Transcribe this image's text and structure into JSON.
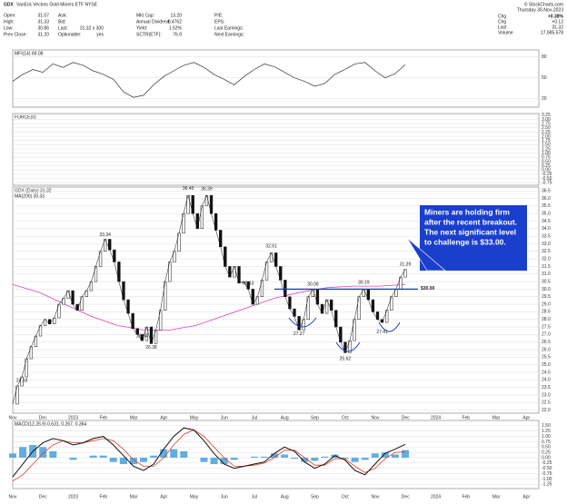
{
  "header": {
    "symbol": "GDX",
    "name": "VanEck Vectors Gold Miners ETF NYSE",
    "columns": [
      [
        [
          "Open:",
          "31.07"
        ],
        [
          "High:",
          "31.33"
        ],
        [
          "Low:",
          "30.86"
        ],
        [
          "Prev Close:",
          "31.20"
        ]
      ],
      [
        [
          "Ask:",
          ""
        ],
        [
          "Bid:",
          ""
        ],
        [
          "Last:",
          "31.32 x 300"
        ],
        [
          "Optionable:",
          "yes"
        ]
      ],
      [
        [
          "Mkt Cap:",
          "13.20"
        ],
        [
          "Annual Dividend:",
          "0.4762"
        ],
        [
          "Yield:",
          "1.52%"
        ],
        [
          "SCTR(ETF):",
          "76.9"
        ]
      ],
      [
        [
          "P/E:",
          ""
        ],
        [
          "EPS:",
          ""
        ],
        [
          "Last Earnings:",
          ""
        ],
        [
          "Next Earnings:",
          ""
        ]
      ]
    ],
    "date": "Thursday 30-Nov-2023",
    "stats": [
      [
        "Chg",
        "+0.38%"
      ],
      [
        "Chg",
        "+0.12"
      ],
      [
        "Last",
        "31.32"
      ],
      [
        "Volume",
        "17,985,578"
      ]
    ],
    "credit": "© StockCharts.com"
  },
  "months": [
    "Nov",
    "Dec",
    "2023",
    "Feb",
    "Mar",
    "Apr",
    "May",
    "Jun",
    "Jul",
    "Aug",
    "Sep",
    "Oct",
    "Nov",
    "Dec",
    "2024",
    "Feb",
    "Mar",
    "Apr"
  ],
  "chart_data": [
    {
      "type": "line",
      "title": "MFI(14) 69.08",
      "color": "#333",
      "ylim": [
        8,
        90
      ],
      "yticks": [
        80,
        50,
        20
      ],
      "values": [
        45,
        55,
        62,
        58,
        70,
        65,
        72,
        68,
        60,
        55,
        48,
        30,
        22,
        25,
        40,
        52,
        60,
        68,
        72,
        65,
        55,
        48,
        40,
        52,
        62,
        70,
        66,
        58,
        50,
        45,
        38,
        42,
        55,
        62,
        70,
        72,
        60,
        50,
        56,
        69
      ]
    },
    {
      "type": "line",
      "title": "FORCE(0)",
      "color": "#333",
      "ylim": [
        -0.9,
        3.35
      ],
      "yticks": [
        {
          "value": 3.25,
          "label": "3.25"
        },
        {
          "value": 3,
          "label": "3.00"
        },
        {
          "value": 2.75,
          "label": "2.75"
        },
        {
          "value": 2.5,
          "label": "2.50"
        },
        {
          "value": 2.25,
          "label": "2.25"
        },
        {
          "value": 2,
          "label": "2.00"
        },
        {
          "value": 1.75,
          "label": "1.75"
        },
        {
          "value": 1.5,
          "label": "1.50"
        },
        {
          "value": 1.25,
          "label": "1.25"
        },
        {
          "value": 1,
          "label": "1.00"
        },
        {
          "value": 0.75,
          "label": "0.75"
        },
        {
          "value": 0.5,
          "label": "0.50"
        },
        {
          "value": 0.25,
          "label": "0.25"
        },
        {
          "value": 0,
          "label": "0.00"
        },
        {
          "value": -0.25,
          "label": "-0.25"
        },
        {
          "value": -0.5,
          "label": "-0.50"
        },
        {
          "value": -0.75,
          "label": "-0.75"
        }
      ],
      "values": []
    },
    {
      "type": "price",
      "title": "GDX (Daily) 31.32",
      "ma_title": "MA(200) 30.33",
      "color": "#111",
      "ma_color": "#e040c0",
      "ylim": [
        21.8,
        36.75
      ],
      "yticks": [
        {
          "value": 36.5,
          "label": "36.5"
        },
        {
          "value": 36,
          "label": "36.0"
        },
        {
          "value": 35.5,
          "label": "35.5"
        },
        {
          "value": 35,
          "label": "35.0"
        },
        {
          "value": 34.5,
          "label": "34.5"
        },
        {
          "value": 34,
          "label": "34.0"
        },
        {
          "value": 33.5,
          "label": "33.5"
        },
        {
          "value": 33,
          "label": "33.0"
        },
        {
          "value": 32.5,
          "label": "32.5"
        },
        {
          "value": 32,
          "label": "32.0"
        },
        {
          "value": 31.5,
          "label": "31.5"
        },
        {
          "value": 31,
          "label": "31.0"
        },
        {
          "value": 30.5,
          "label": "30.5"
        },
        {
          "value": 30,
          "label": "30.0"
        },
        {
          "value": 29.5,
          "label": "29.5"
        },
        {
          "value": 29,
          "label": "29.0"
        },
        {
          "value": 28.5,
          "label": "28.5"
        },
        {
          "value": 28,
          "label": "28.0"
        },
        {
          "value": 27.5,
          "label": "27.5"
        },
        {
          "value": 27,
          "label": "27.0"
        },
        {
          "value": 26.5,
          "label": "26.5"
        },
        {
          "value": 26,
          "label": "26.0"
        },
        {
          "value": 25.5,
          "label": "25.5"
        },
        {
          "value": 25,
          "label": "25.0"
        },
        {
          "value": 24.5,
          "label": "24.5"
        },
        {
          "value": 24,
          "label": "24.0"
        },
        {
          "value": 23.5,
          "label": "23.5"
        },
        {
          "value": 23,
          "label": "23.0"
        },
        {
          "value": 22.5,
          "label": "22.5"
        },
        {
          "value": 22,
          "label": "22.0"
        }
      ],
      "values": [
        22.4,
        23.6,
        24.2,
        25.4,
        26.2,
        26.9,
        27.6,
        28.0,
        27.7,
        28.1,
        29.0,
        29.4,
        29.9,
        29.0,
        28.6,
        29.5,
        29.9,
        30.5,
        31.5,
        32.5,
        33.3,
        32.6,
        31.8,
        30.5,
        29.3,
        28.4,
        27.4,
        27.0,
        26.6,
        27.5,
        26.4,
        27.3,
        28.6,
        30.5,
        31.8,
        32.5,
        33.7,
        35.0,
        36.2,
        35.0,
        34.0,
        35.5,
        36.2,
        35.0,
        33.9,
        32.8,
        31.5,
        30.8,
        31.5,
        30.4,
        30.5,
        30.0,
        29.0,
        29.5,
        30.6,
        31.8,
        32.4,
        31.5,
        30.6,
        29.5,
        28.7,
        28.2,
        27.3,
        28.0,
        29.5,
        30.0,
        29.0,
        28.4,
        29.3,
        28.6,
        27.5,
        26.5,
        25.8,
        26.6,
        28.0,
        29.5,
        30.0,
        29.3,
        28.5,
        28.0,
        27.8,
        28.6,
        29.5,
        30.0,
        30.8,
        31.3
      ],
      "ma": [
        30.3,
        29.8,
        29.0,
        28.2,
        27.6,
        27.3,
        27.3,
        27.6,
        28.2,
        28.8,
        29.4,
        29.8,
        30.1,
        30.2,
        30.2,
        30.3
      ],
      "pivots": [
        {
          "value": 24.18,
          "label": "24.18",
          "point": 2
        },
        {
          "value": 33.34,
          "label": "33.34",
          "point": 20
        },
        {
          "value": 26.64,
          "label": "26.64",
          "point": 28
        },
        {
          "value": 26.38,
          "label": "26.38",
          "point": 30
        },
        {
          "value": 36.4,
          "label": "36.40",
          "point": 38
        },
        {
          "value": 36.39,
          "label": "36.39",
          "point": 42
        },
        {
          "value": 30.13,
          "label": "30.13",
          "point": 51
        },
        {
          "value": 32.61,
          "label": "32.61",
          "point": 56
        },
        {
          "value": 27.27,
          "label": "27.27",
          "point": 62
        },
        {
          "value": 30.08,
          "label": "30.08",
          "point": 65
        },
        {
          "value": 25.62,
          "label": "25.62",
          "point": 72
        },
        {
          "value": 30.19,
          "label": "30.19",
          "point": 76
        },
        {
          "value": 27.41,
          "label": "27.41",
          "point": 80
        },
        {
          "value": 31.39,
          "label": "31.39",
          "point": 85
        }
      ],
      "level": {
        "value": 30,
        "label": "$30.00",
        "color": "#1a3fcc"
      },
      "annotation": [
        "Miners are holding firm",
        "after the recent breakout.",
        "The next significant level",
        "to challenge is $33.00."
      ]
    },
    {
      "type": "macd",
      "title": "MACD(12,26,9) 0.631, 0.267, 0.364",
      "ylim": [
        -1.45,
        1.75
      ],
      "yticks": [
        {
          "value": 1.5,
          "label": "1.50"
        },
        {
          "value": 1.25,
          "label": "1.25"
        },
        {
          "value": 1,
          "label": "1.00"
        },
        {
          "value": 0.75,
          "label": "0.75"
        },
        {
          "value": 0.5,
          "label": "0.50"
        },
        {
          "value": 0.25,
          "label": "0.25"
        },
        {
          "value": 0,
          "label": "0.00"
        },
        {
          "value": -0.25,
          "label": "-0.25"
        },
        {
          "value": -0.5,
          "label": "-0.50"
        },
        {
          "value": -0.75,
          "label": "-0.75"
        },
        {
          "value": -1,
          "label": "-1.00"
        },
        {
          "value": -1.25,
          "label": "-1.25"
        }
      ],
      "series": [
        {
          "name": "MACD",
          "color": "#111",
          "values": [
            -0.9,
            -0.3,
            0.3,
            0.7,
            0.9,
            0.8,
            0.6,
            0.7,
            0.9,
            1.0,
            0.6,
            0.1,
            -0.4,
            -0.6,
            -0.3,
            0.4,
            1.0,
            1.4,
            1.3,
            0.8,
            0.2,
            -0.3,
            -0.5,
            -0.4,
            -0.3,
            -0.2,
            0.2,
            0.5,
            0.3,
            -0.2,
            -0.5,
            -0.3,
            0.1,
            -0.1,
            -0.6,
            -0.8,
            -0.3,
            0.2,
            0.4,
            0.63
          ]
        },
        {
          "name": "Signal",
          "color": "#e0402a",
          "values": [
            -1.1,
            -0.8,
            -0.3,
            0.2,
            0.6,
            0.8,
            0.7,
            0.7,
            0.8,
            0.9,
            0.8,
            0.4,
            -0.1,
            -0.4,
            -0.4,
            0.0,
            0.6,
            1.1,
            1.3,
            1.0,
            0.5,
            0.0,
            -0.4,
            -0.4,
            -0.35,
            -0.25,
            0.0,
            0.35,
            0.35,
            0.0,
            -0.35,
            -0.35,
            -0.05,
            -0.05,
            -0.4,
            -0.7,
            -0.5,
            -0.05,
            0.25,
            0.27
          ]
        },
        {
          "name": "Histogram",
          "color": "#3a9ad9",
          "values": [
            0.2,
            0.5,
            0.6,
            0.5,
            0.3,
            0.0,
            -0.1,
            0.0,
            0.1,
            0.1,
            -0.2,
            -0.3,
            -0.3,
            -0.2,
            0.1,
            0.4,
            0.4,
            0.3,
            0.0,
            -0.2,
            -0.3,
            -0.3,
            -0.1,
            0.0,
            0.05,
            0.05,
            0.2,
            0.15,
            -0.05,
            -0.2,
            -0.15,
            0.05,
            0.15,
            -0.05,
            -0.2,
            -0.1,
            0.2,
            0.25,
            0.15,
            0.36
          ]
        }
      ]
    }
  ]
}
